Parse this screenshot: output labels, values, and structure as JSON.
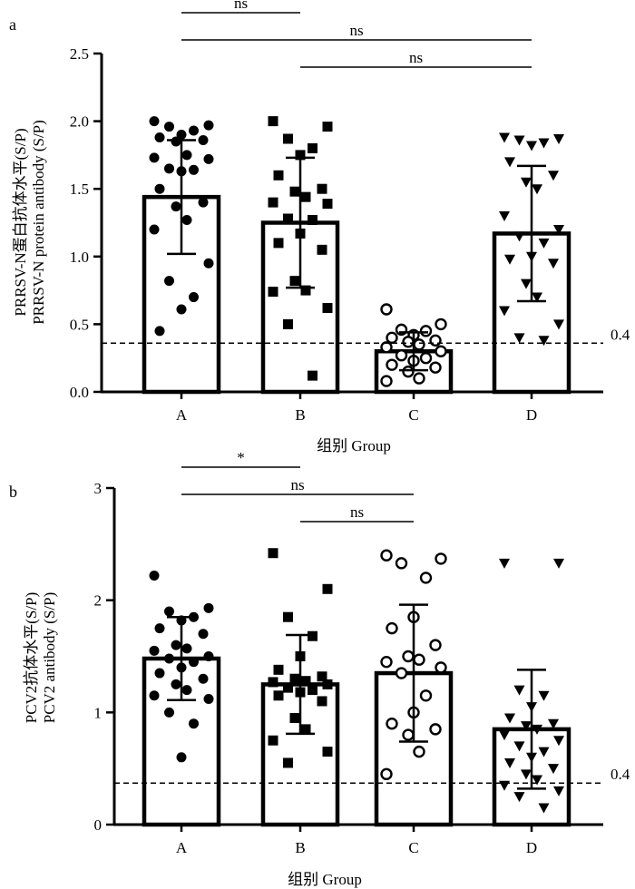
{
  "chart_data": [
    {
      "type": "bar",
      "panel_label": "a",
      "title": "",
      "ylabel_line1": "PRRSV-N蛋白抗体水平(S/P)",
      "ylabel_line2": "PRRSV-N protein antibody (S/P)",
      "xlabel": "组别  Group",
      "categories": [
        "A",
        "B",
        "C",
        "D"
      ],
      "ylim": [
        0,
        2.5
      ],
      "yticks": [
        0.0,
        0.5,
        1.0,
        1.5,
        2.0,
        2.5
      ],
      "ytick_labels": [
        "0.0",
        "0.5",
        "1.0",
        "1.5",
        "2.0",
        "2.5"
      ],
      "bars": [
        1.44,
        1.25,
        0.3,
        1.17
      ],
      "sd": [
        0.42,
        0.48,
        0.14,
        0.5
      ],
      "threshold": {
        "value": 0.36,
        "label": "0.4"
      },
      "comparisons": [
        {
          "from": 0,
          "to": 1,
          "level": 0,
          "label": "ns"
        },
        {
          "from": 0,
          "to": 3,
          "level": 1,
          "label": "ns"
        },
        {
          "from": 1,
          "to": 3,
          "level": 2,
          "label": "ns"
        }
      ],
      "points": [
        {
          "marker": "circle-filled",
          "values": [
            2.0,
            1.97,
            1.96,
            1.93,
            1.9,
            1.88,
            1.86,
            1.85,
            1.75,
            1.73,
            1.72,
            1.65,
            1.64,
            1.63,
            1.5,
            1.4,
            1.37,
            1.27,
            1.2,
            0.95,
            0.82,
            0.7,
            0.61,
            0.45
          ]
        },
        {
          "marker": "square-filled",
          "values": [
            2.0,
            1.96,
            1.87,
            1.8,
            1.75,
            1.6,
            1.5,
            1.48,
            1.44,
            1.4,
            1.39,
            1.28,
            1.27,
            1.17,
            1.1,
            1.05,
            0.82,
            0.75,
            0.74,
            0.62,
            0.5,
            0.12
          ]
        },
        {
          "marker": "circle-open",
          "values": [
            0.61,
            0.5,
            0.46,
            0.45,
            0.42,
            0.4,
            0.38,
            0.37,
            0.35,
            0.33,
            0.3,
            0.27,
            0.25,
            0.23,
            0.2,
            0.18,
            0.15,
            0.1,
            0.08
          ]
        },
        {
          "marker": "triangle-down-filled",
          "values": [
            1.88,
            1.87,
            1.86,
            1.84,
            1.82,
            1.7,
            1.6,
            1.55,
            1.5,
            1.3,
            1.2,
            1.15,
            1.1,
            1.0,
            0.98,
            0.95,
            0.8,
            0.7,
            0.6,
            0.5,
            0.4,
            0.38
          ]
        }
      ]
    },
    {
      "type": "bar",
      "panel_label": "b",
      "title": "",
      "ylabel_line1": "PCV2抗体水平(S/P)",
      "ylabel_line2": "PCV2 antibody (S/P)",
      "xlabel": "组别  Group",
      "categories": [
        "A",
        "B",
        "C",
        "D"
      ],
      "ylim": [
        0,
        3
      ],
      "yticks": [
        0,
        1,
        2,
        3
      ],
      "ytick_labels": [
        "0",
        "1",
        "2",
        "3"
      ],
      "bars": [
        1.48,
        1.25,
        1.35,
        0.85
      ],
      "sd": [
        0.37,
        0.44,
        0.61,
        0.53
      ],
      "threshold": {
        "value": 0.37,
        "label": "0.4"
      },
      "comparisons": [
        {
          "from": 0,
          "to": 1,
          "level": 0,
          "label": "*"
        },
        {
          "from": 0,
          "to": 2,
          "level": 1,
          "label": "ns"
        },
        {
          "from": 1,
          "to": 2,
          "level": 2,
          "label": "ns"
        }
      ],
      "points": [
        {
          "marker": "circle-filled",
          "values": [
            2.22,
            1.93,
            1.9,
            1.85,
            1.82,
            1.75,
            1.7,
            1.6,
            1.57,
            1.55,
            1.5,
            1.48,
            1.45,
            1.4,
            1.35,
            1.3,
            1.25,
            1.2,
            1.15,
            1.12,
            1.0,
            0.9,
            0.6
          ]
        },
        {
          "marker": "square-filled",
          "values": [
            2.42,
            2.1,
            1.85,
            1.68,
            1.5,
            1.38,
            1.32,
            1.3,
            1.28,
            1.27,
            1.25,
            1.22,
            1.2,
            1.18,
            1.15,
            1.1,
            0.95,
            0.85,
            0.75,
            0.65,
            0.55
          ]
        },
        {
          "marker": "circle-open",
          "values": [
            2.4,
            2.37,
            2.33,
            2.2,
            1.85,
            1.75,
            1.6,
            1.5,
            1.47,
            1.45,
            1.4,
            1.35,
            1.15,
            1.0,
            0.9,
            0.85,
            0.8,
            0.65,
            0.45
          ]
        },
        {
          "marker": "triangle-down-filled",
          "values": [
            2.33,
            2.33,
            1.2,
            1.15,
            1.05,
            0.95,
            0.9,
            0.88,
            0.85,
            0.8,
            0.75,
            0.7,
            0.65,
            0.6,
            0.55,
            0.5,
            0.45,
            0.4,
            0.35,
            0.3,
            0.25,
            0.15
          ]
        }
      ]
    }
  ]
}
